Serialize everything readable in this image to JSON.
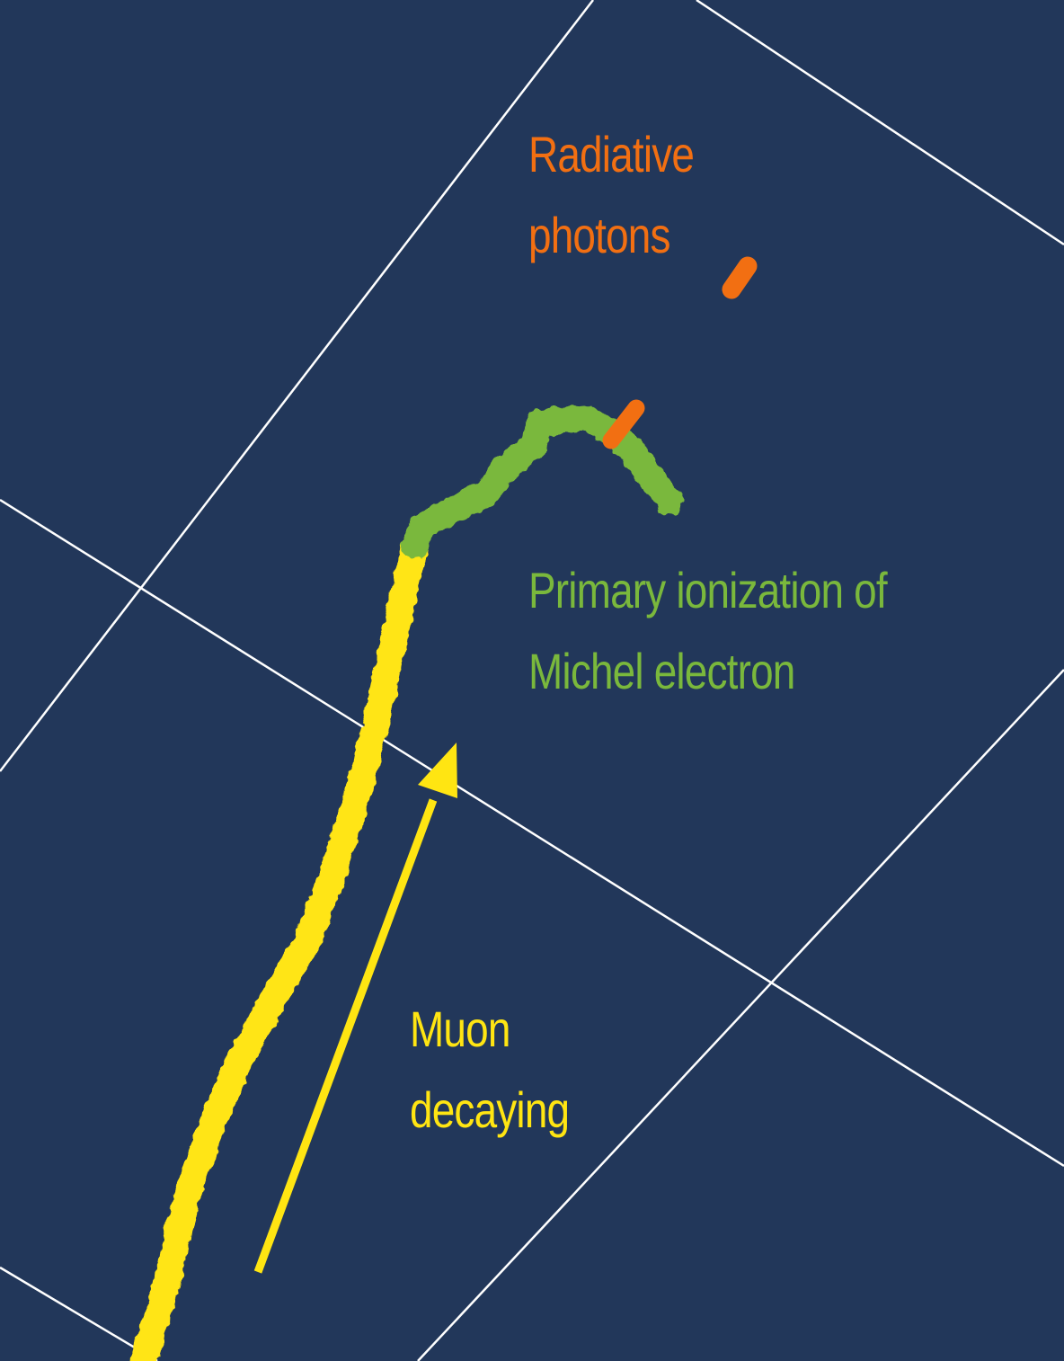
{
  "background_color": "#22375a",
  "grid_color": "#ffffff",
  "labels": {
    "photons": {
      "line1": "Radiative",
      "line2": "photons",
      "color": "#f26f12"
    },
    "michel": {
      "line1": "Primary ionization of",
      "line2": "Michel electron",
      "color": "#7ab83c"
    },
    "muon": {
      "line1": "Muon",
      "line2": "decaying",
      "color": "#ffe512"
    }
  },
  "track_colors": {
    "muon": "#ffe512",
    "michel": "#7ab83c",
    "photons": "#f26f12"
  },
  "arrow_color": "#ffe512"
}
